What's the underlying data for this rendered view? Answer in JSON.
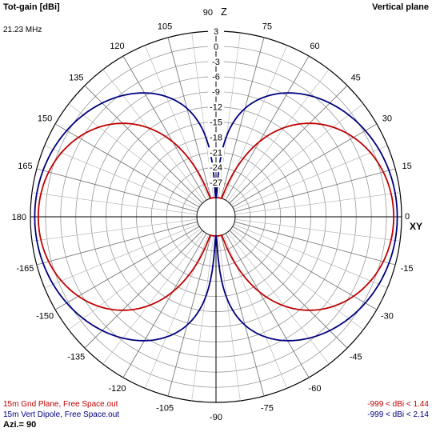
{
  "header": {
    "title_left": "Tot-gain [dBi]",
    "frequency": "21.23 MHz",
    "title_right": "Vertical plane"
  },
  "footer": {
    "azimuth": "Azi.= 90"
  },
  "axis_labels": {
    "zenith": "Z",
    "horizon": "XY"
  },
  "chart_data": {
    "type": "polar",
    "plane": "vertical",
    "gain_unit": "dBi",
    "radial_ticks": [
      "3",
      "0",
      "-3",
      "-6",
      "-9",
      "-12",
      "-15",
      "-18",
      "-21",
      "-24",
      "-27"
    ],
    "radial_range": [
      -30,
      3
    ],
    "radial_ring_step": 3,
    "angle_ticks": [
      "90",
      "75",
      "60",
      "45",
      "30",
      "15",
      "0",
      "-15",
      "-30",
      "-45",
      "-60",
      "-75",
      "-90",
      "-105",
      "-120",
      "-135",
      "-150",
      "-165",
      "180",
      "165",
      "150",
      "135",
      "120",
      "105"
    ],
    "angle_tick_values": [
      90,
      75,
      60,
      45,
      30,
      15,
      0,
      -15,
      -30,
      -45,
      -60,
      -75,
      -90,
      -105,
      -120,
      -135,
      -150,
      -165,
      180,
      165,
      150,
      135,
      120,
      105
    ],
    "angle_grid_step": 7.5,
    "series": [
      {
        "name": "15m Gnd Plane, Free Space.out",
        "range_label": "-999 < dBi < 1.44",
        "color": "#c00000",
        "max_gain": 1.44,
        "pattern": "monopole-ground-plane"
      },
      {
        "name": "15m Vert Dipole, Free Space.out",
        "range_label": "-999 < dBi < 2.14",
        "color": "#000080",
        "max_gain": 2.14,
        "pattern": "half-wave-dipole"
      }
    ]
  }
}
